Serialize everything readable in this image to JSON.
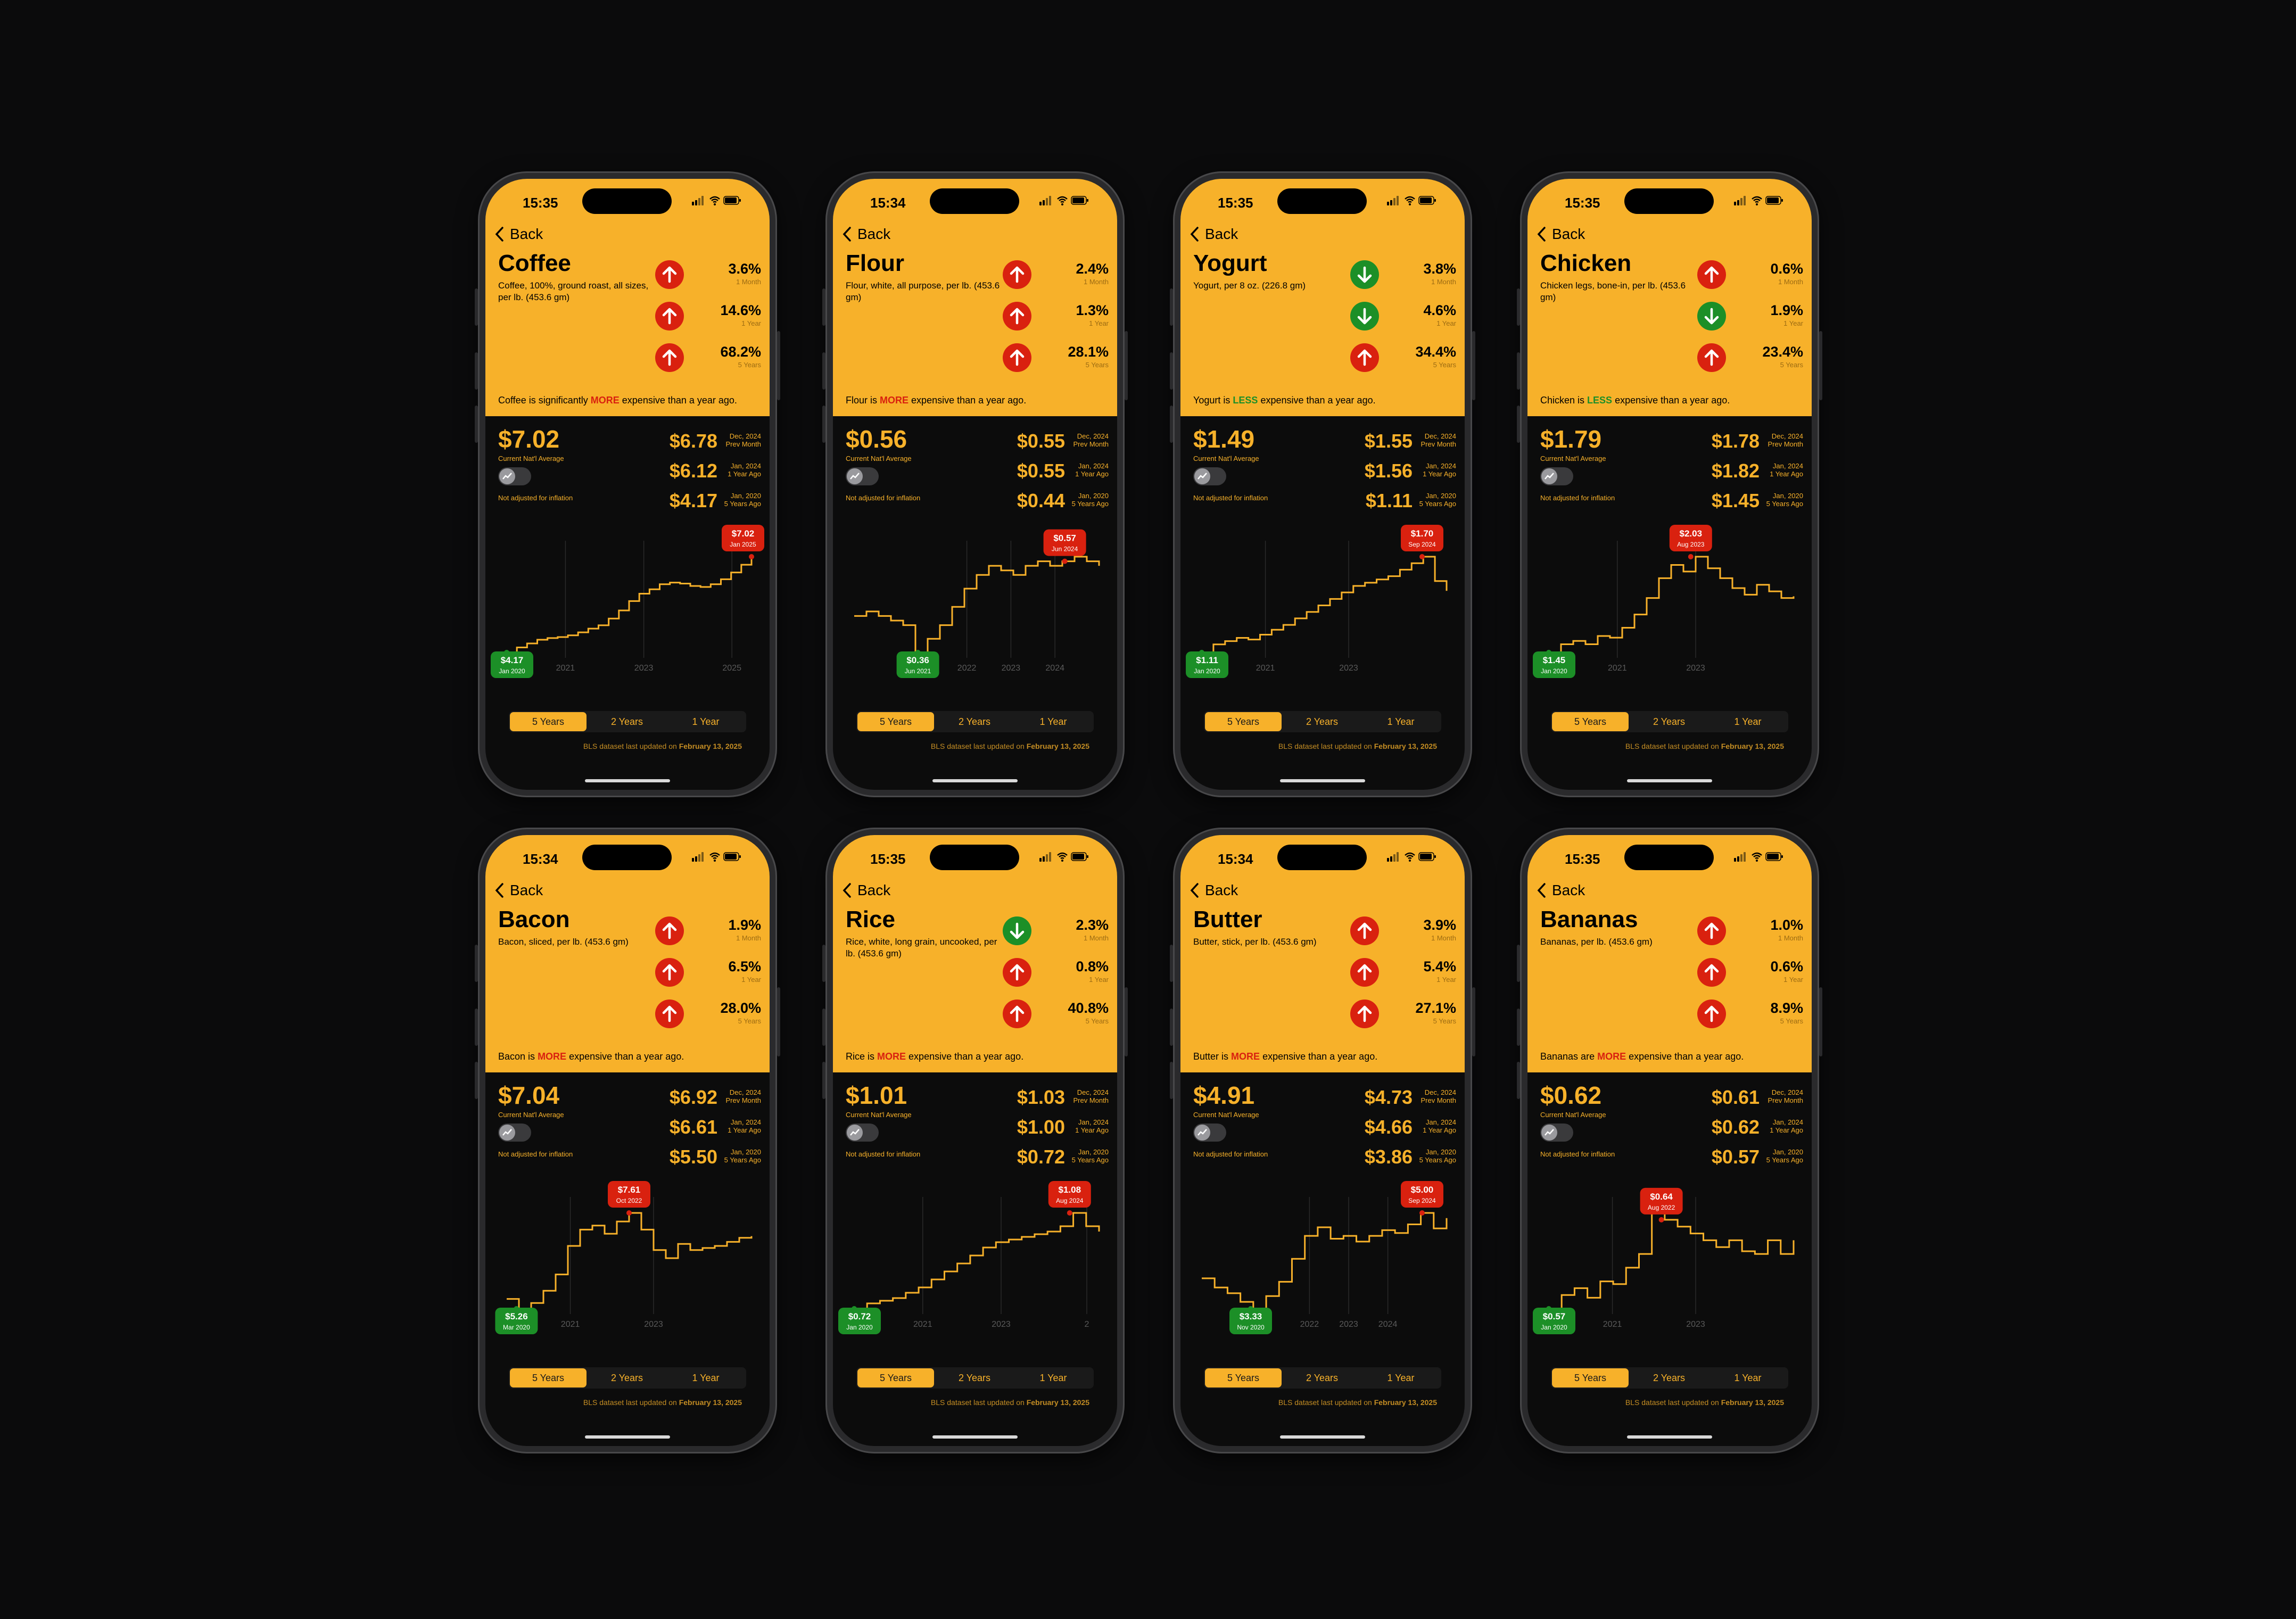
{
  "colors": {
    "accent": "#f7b12a",
    "up": "#d9210f",
    "down": "#1c8f27",
    "more": "#d9210f",
    "less": "#1c8f27",
    "background": "#0b0b0c"
  },
  "back_label": "Back",
  "tabs": [
    "5 Years",
    "2 Years",
    "1 Year"
  ],
  "footer": {
    "text": "BLS dataset last updated on",
    "date": "February 13, 2025"
  },
  "toggle_label": "Not adjusted for inflation",
  "current_label": "Current Nat'l Average",
  "icons": {
    "back": "chevron-left-icon",
    "up": "arrow-up-icon",
    "down": "arrow-down-icon",
    "toggle": "inflation-toggle-icon"
  },
  "phones": [
    {
      "time": "15:35",
      "title": "Coffee",
      "description": "Coffee, 100%, ground roast, all sizes, per lb. (453.6 gm)",
      "stats": [
        {
          "dir": "up",
          "pct": "3.6%",
          "label": "1 Month"
        },
        {
          "dir": "up",
          "pct": "14.6%",
          "label": "1 Year"
        },
        {
          "dir": "up",
          "pct": "68.2%",
          "label": "5 Years"
        }
      ],
      "verdict": {
        "pre": "Coffee is significantly",
        "word": "MORE",
        "tone": "more",
        "post": "expensive than a year ago."
      },
      "current": "$7.02",
      "rows": [
        {
          "v": "$6.78",
          "d1": "Dec, 2024",
          "d2": "Prev Month"
        },
        {
          "v": "$6.12",
          "d1": "Jan, 2024",
          "d2": "1 Year Ago"
        },
        {
          "v": "$4.17",
          "d1": "Jan, 2020",
          "d2": "5 Years Ago"
        }
      ],
      "chart": {
        "prices": [
          4.17,
          4.32,
          4.44,
          4.55,
          4.6,
          4.63,
          4.68,
          4.77,
          4.88,
          4.98,
          5.18,
          5.42,
          5.7,
          5.92,
          6.05,
          6.2,
          6.25,
          6.22,
          6.15,
          6.12,
          6.2,
          6.35,
          6.55,
          6.78,
          7.02
        ],
        "years": [
          "2021",
          "2023",
          "2025"
        ],
        "year_pos": [
          0.24,
          0.56,
          0.92
        ],
        "min": {
          "value": "$4.17",
          "date": "Jan 2020",
          "at": 0
        },
        "max": {
          "value": "$7.02",
          "date": "Jan 2025",
          "at": 1
        }
      }
    },
    {
      "time": "15:34",
      "title": "Flour",
      "description": "Flour, white, all purpose, per lb. (453.6 gm)",
      "stats": [
        {
          "dir": "up",
          "pct": "2.4%",
          "label": "1 Month"
        },
        {
          "dir": "up",
          "pct": "1.3%",
          "label": "1 Year"
        },
        {
          "dir": "up",
          "pct": "28.1%",
          "label": "5 Years"
        }
      ],
      "verdict": {
        "pre": "Flour is",
        "word": "MORE",
        "tone": "more",
        "post": "expensive than a year ago."
      },
      "current": "$0.56",
      "rows": [
        {
          "v": "$0.55",
          "d1": "Dec, 2024",
          "d2": "Prev Month"
        },
        {
          "v": "$0.55",
          "d1": "Jan, 2024",
          "d2": "1 Year Ago"
        },
        {
          "v": "$0.44",
          "d1": "Jan, 2020",
          "d2": "5 Years Ago"
        }
      ],
      "chart": {
        "prices": [
          0.44,
          0.45,
          0.44,
          0.43,
          0.42,
          0.36,
          0.39,
          0.42,
          0.46,
          0.5,
          0.53,
          0.55,
          0.54,
          0.53,
          0.55,
          0.56,
          0.55,
          0.56,
          0.57,
          0.56,
          0.55
        ],
        "years": [
          "2022",
          "2023",
          "2024"
        ],
        "year_pos": [
          0.46,
          0.64,
          0.82
        ],
        "min": {
          "value": "$0.36",
          "date": "Jun 2021",
          "at": 0.26
        },
        "max": {
          "value": "$0.57",
          "date": "Jun 2024",
          "at": 0.86
        }
      }
    },
    {
      "time": "15:35",
      "title": "Yogurt",
      "description": "Yogurt, per 8 oz. (226.8 gm)",
      "stats": [
        {
          "dir": "down",
          "pct": "3.8%",
          "label": "1 Month"
        },
        {
          "dir": "down",
          "pct": "4.6%",
          "label": "1 Year"
        },
        {
          "dir": "up",
          "pct": "34.4%",
          "label": "5 Years"
        }
      ],
      "verdict": {
        "pre": "Yogurt is",
        "word": "LESS",
        "tone": "less",
        "post": "expensive than a year ago."
      },
      "current": "$1.49",
      "rows": [
        {
          "v": "$1.55",
          "d1": "Dec, 2024",
          "d2": "Prev Month"
        },
        {
          "v": "$1.56",
          "d1": "Jan, 2024",
          "d2": "1 Year Ago"
        },
        {
          "v": "$1.11",
          "d1": "Jan, 2020",
          "d2": "5 Years Ago"
        }
      ],
      "chart": {
        "prices": [
          1.11,
          1.16,
          1.18,
          1.2,
          1.19,
          1.22,
          1.25,
          1.28,
          1.32,
          1.36,
          1.4,
          1.44,
          1.48,
          1.52,
          1.54,
          1.56,
          1.58,
          1.62,
          1.66,
          1.7,
          1.55,
          1.49
        ],
        "years": [
          "2021",
          "2023"
        ],
        "year_pos": [
          0.26,
          0.6
        ],
        "min": {
          "value": "$1.11",
          "date": "Jan 2020",
          "at": 0
        },
        "max": {
          "value": "$1.70",
          "date": "Sep 2024",
          "at": 0.9
        }
      }
    },
    {
      "time": "15:35",
      "title": "Chicken",
      "description": "Chicken legs, bone-in, per lb. (453.6 gm)",
      "stats": [
        {
          "dir": "up",
          "pct": "0.6%",
          "label": "1 Month"
        },
        {
          "dir": "down",
          "pct": "1.9%",
          "label": "1 Year"
        },
        {
          "dir": "up",
          "pct": "23.4%",
          "label": "5 Years"
        }
      ],
      "verdict": {
        "pre": "Chicken is",
        "word": "LESS",
        "tone": "less",
        "post": "expensive than a year ago."
      },
      "current": "$1.79",
      "rows": [
        {
          "v": "$1.78",
          "d1": "Dec, 2024",
          "d2": "Prev Month"
        },
        {
          "v": "$1.82",
          "d1": "Jan, 2024",
          "d2": "1 Year Ago"
        },
        {
          "v": "$1.45",
          "d1": "Jan, 2020",
          "d2": "5 Years Ago"
        }
      ],
      "chart": {
        "prices": [
          1.45,
          1.5,
          1.52,
          1.5,
          1.55,
          1.54,
          1.6,
          1.68,
          1.78,
          1.9,
          1.98,
          1.94,
          2.03,
          1.96,
          1.9,
          1.84,
          1.8,
          1.86,
          1.82,
          1.78,
          1.79
        ],
        "years": [
          "2021",
          "2023"
        ],
        "year_pos": [
          0.28,
          0.6
        ],
        "min": {
          "value": "$1.45",
          "date": "Jan 2020",
          "at": 0
        },
        "max": {
          "value": "$2.03",
          "date": "Aug 2023",
          "at": 0.58
        }
      }
    },
    {
      "time": "15:34",
      "title": "Bacon",
      "description": "Bacon, sliced, per lb. (453.6 gm)",
      "stats": [
        {
          "dir": "up",
          "pct": "1.9%",
          "label": "1 Month"
        },
        {
          "dir": "up",
          "pct": "6.5%",
          "label": "1 Year"
        },
        {
          "dir": "up",
          "pct": "28.0%",
          "label": "5 Years"
        }
      ],
      "verdict": {
        "pre": "Bacon is",
        "word": "MORE",
        "tone": "more",
        "post": "expensive than a year ago."
      },
      "current": "$7.04",
      "rows": [
        {
          "v": "$6.92",
          "d1": "Dec, 2024",
          "d2": "Prev Month"
        },
        {
          "v": "$6.61",
          "d1": "Jan, 2024",
          "d2": "1 Year Ago"
        },
        {
          "v": "$5.50",
          "d1": "Jan, 2020",
          "d2": "5 Years Ago"
        }
      ],
      "chart": {
        "prices": [
          5.5,
          5.26,
          5.4,
          5.7,
          6.1,
          6.8,
          7.2,
          7.3,
          7.1,
          7.4,
          7.61,
          7.2,
          6.7,
          6.5,
          6.85,
          6.7,
          6.75,
          6.8,
          6.9,
          7.0,
          7.04
        ],
        "years": [
          "2021",
          "2023"
        ],
        "year_pos": [
          0.26,
          0.6
        ],
        "min": {
          "value": "$5.26",
          "date": "Mar 2020",
          "at": 0.04
        },
        "max": {
          "value": "$7.61",
          "date": "Oct 2022",
          "at": 0.5
        }
      }
    },
    {
      "time": "15:35",
      "title": "Rice",
      "description": "Rice, white, long grain, uncooked, per lb. (453.6 gm)",
      "stats": [
        {
          "dir": "down",
          "pct": "2.3%",
          "label": "1 Month"
        },
        {
          "dir": "up",
          "pct": "0.8%",
          "label": "1 Year"
        },
        {
          "dir": "up",
          "pct": "40.8%",
          "label": "5 Years"
        }
      ],
      "verdict": {
        "pre": "Rice is",
        "word": "MORE",
        "tone": "more",
        "post": "expensive than a year ago."
      },
      "current": "$1.01",
      "rows": [
        {
          "v": "$1.03",
          "d1": "Dec, 2024",
          "d2": "Prev Month"
        },
        {
          "v": "$1.00",
          "d1": "Jan, 2024",
          "d2": "1 Year Ago"
        },
        {
          "v": "$0.72",
          "d1": "Jan, 2020",
          "d2": "5 Years Ago"
        }
      ],
      "chart": {
        "prices": [
          0.72,
          0.74,
          0.75,
          0.76,
          0.78,
          0.8,
          0.83,
          0.86,
          0.89,
          0.92,
          0.95,
          0.97,
          0.98,
          0.99,
          1.0,
          1.01,
          1.03,
          1.08,
          1.03,
          1.01
        ],
        "years": [
          "2021",
          "2023",
          "2"
        ],
        "year_pos": [
          0.28,
          0.6,
          0.95
        ],
        "min": {
          "value": "$0.72",
          "date": "Jan 2020",
          "at": 0
        },
        "max": {
          "value": "$1.08",
          "date": "Aug 2024",
          "at": 0.88
        }
      }
    },
    {
      "time": "15:34",
      "title": "Butter",
      "description": "Butter, stick, per lb. (453.6 gm)",
      "stats": [
        {
          "dir": "up",
          "pct": "3.9%",
          "label": "1 Month"
        },
        {
          "dir": "up",
          "pct": "5.4%",
          "label": "1 Year"
        },
        {
          "dir": "up",
          "pct": "27.1%",
          "label": "5 Years"
        }
      ],
      "verdict": {
        "pre": "Butter is",
        "word": "MORE",
        "tone": "more",
        "post": "expensive than a year ago."
      },
      "current": "$4.91",
      "rows": [
        {
          "v": "$4.73",
          "d1": "Dec, 2024",
          "d2": "Prev Month"
        },
        {
          "v": "$4.66",
          "d1": "Jan, 2024",
          "d2": "1 Year Ago"
        },
        {
          "v": "$3.86",
          "d1": "Jan, 2020",
          "d2": "5 Years Ago"
        }
      ],
      "chart": {
        "prices": [
          3.86,
          3.7,
          3.6,
          3.45,
          3.33,
          3.55,
          3.8,
          4.2,
          4.6,
          4.75,
          4.55,
          4.6,
          4.5,
          4.6,
          4.7,
          4.65,
          4.8,
          5.0,
          4.73,
          4.91
        ],
        "years": [
          "2022",
          "2023",
          "2024"
        ],
        "year_pos": [
          0.44,
          0.6,
          0.76
        ],
        "min": {
          "value": "$3.33",
          "date": "Nov 2020",
          "at": 0.2
        },
        "max": {
          "value": "$5.00",
          "date": "Sep 2024",
          "at": 0.9
        }
      }
    },
    {
      "time": "15:35",
      "title": "Bananas",
      "description": "Bananas, per lb. (453.6 gm)",
      "stats": [
        {
          "dir": "up",
          "pct": "1.0%",
          "label": "1 Month"
        },
        {
          "dir": "up",
          "pct": "0.6%",
          "label": "1 Year"
        },
        {
          "dir": "up",
          "pct": "8.9%",
          "label": "5 Years"
        }
      ],
      "verdict": {
        "pre": "Bananas are",
        "word": "MORE",
        "tone": "more",
        "post": "expensive than a year ago."
      },
      "current": "$0.62",
      "rows": [
        {
          "v": "$0.61",
          "d1": "Dec, 2024",
          "d2": "Prev Month"
        },
        {
          "v": "$0.62",
          "d1": "Jan, 2024",
          "d2": "1 Year Ago"
        },
        {
          "v": "$0.57",
          "d1": "Jan, 2020",
          "d2": "5 Years Ago"
        }
      ],
      "chart": {
        "prices": [
          0.57,
          0.58,
          0.585,
          0.578,
          0.59,
          0.588,
          0.6,
          0.61,
          0.64,
          0.635,
          0.63,
          0.625,
          0.62,
          0.615,
          0.62,
          0.612,
          0.61,
          0.62,
          0.61,
          0.62
        ],
        "years": [
          "2021",
          "2023"
        ],
        "year_pos": [
          0.26,
          0.6
        ],
        "min": {
          "value": "$0.57",
          "date": "Jan 2020",
          "at": 0
        },
        "max": {
          "value": "$0.64",
          "date": "Aug 2022",
          "at": 0.46
        }
      }
    }
  ]
}
